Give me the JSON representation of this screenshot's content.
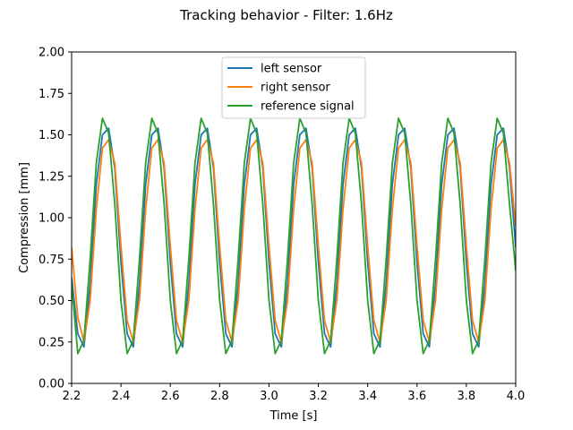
{
  "chart_data": {
    "type": "line",
    "title": "Tracking behavior - Filter: 1.6Hz",
    "xlabel": "Time [s]",
    "ylabel": "Compression [mm]",
    "xlim": [
      2.2,
      4.0
    ],
    "ylim": [
      0.0,
      2.0
    ],
    "xticks": [
      2.2,
      2.4,
      2.6,
      2.8,
      3.0,
      3.2,
      3.4,
      3.6,
      3.8,
      4.0
    ],
    "xtick_labels": [
      "2.2",
      "2.4",
      "2.6",
      "2.8",
      "3.0",
      "3.2",
      "3.4",
      "3.6",
      "3.8",
      "4.0"
    ],
    "yticks": [
      0.0,
      0.25,
      0.5,
      0.75,
      1.0,
      1.25,
      1.5,
      1.75,
      2.0
    ],
    "ytick_labels": [
      "0.00",
      "0.25",
      "0.50",
      "0.75",
      "1.00",
      "1.25",
      "1.50",
      "1.75",
      "2.00"
    ],
    "grid": false,
    "legend_position": "top-center",
    "series": [
      {
        "name": "left sensor",
        "color": "#1f77b4",
        "x": [
          2.2,
          2.225,
          2.25,
          2.275,
          2.3,
          2.325,
          2.35,
          2.375,
          2.4,
          2.425,
          2.45,
          2.475,
          2.5,
          2.525,
          2.55,
          2.575,
          2.6,
          2.625,
          2.65,
          2.675,
          2.7,
          2.725,
          2.75,
          2.775,
          2.8,
          2.825,
          2.85,
          2.875,
          2.9,
          2.925,
          2.95,
          2.975,
          3.0,
          3.025,
          3.05,
          3.075,
          3.1,
          3.125,
          3.15,
          3.175,
          3.2,
          3.225,
          3.25,
          3.275,
          3.3,
          3.325,
          3.35,
          3.375,
          3.4,
          3.425,
          3.45,
          3.475,
          3.5,
          3.525,
          3.55,
          3.575,
          3.6,
          3.625,
          3.65,
          3.675,
          3.7,
          3.725,
          3.75,
          3.775,
          3.8,
          3.825,
          3.85,
          3.875,
          3.9,
          3.925,
          3.95,
          3.975,
          4.0
        ],
        "y": [
          0.64,
          0.3,
          0.22,
          0.6,
          1.2,
          1.5,
          1.54,
          1.3,
          0.73,
          0.3,
          0.22,
          0.6,
          1.2,
          1.5,
          1.54,
          1.3,
          0.73,
          0.3,
          0.22,
          0.6,
          1.2,
          1.5,
          1.54,
          1.3,
          0.73,
          0.3,
          0.22,
          0.6,
          1.2,
          1.5,
          1.54,
          1.3,
          0.73,
          0.3,
          0.22,
          0.6,
          1.2,
          1.5,
          1.54,
          1.3,
          0.73,
          0.3,
          0.22,
          0.6,
          1.2,
          1.5,
          1.54,
          1.3,
          0.73,
          0.3,
          0.22,
          0.6,
          1.2,
          1.5,
          1.54,
          1.3,
          0.73,
          0.3,
          0.22,
          0.6,
          1.2,
          1.5,
          1.54,
          1.3,
          0.73,
          0.3,
          0.22,
          0.6,
          1.2,
          1.5,
          1.54,
          1.3,
          0.82
        ]
      },
      {
        "name": "right sensor",
        "color": "#ff7f0e",
        "x": [
          2.2,
          2.225,
          2.25,
          2.275,
          2.3,
          2.325,
          2.35,
          2.375,
          2.4,
          2.425,
          2.45,
          2.475,
          2.5,
          2.525,
          2.55,
          2.575,
          2.6,
          2.625,
          2.65,
          2.675,
          2.7,
          2.725,
          2.75,
          2.775,
          2.8,
          2.825,
          2.85,
          2.875,
          2.9,
          2.925,
          2.95,
          2.975,
          3.0,
          3.025,
          3.05,
          3.075,
          3.1,
          3.125,
          3.15,
          3.175,
          3.2,
          3.225,
          3.25,
          3.275,
          3.3,
          3.325,
          3.35,
          3.375,
          3.4,
          3.425,
          3.45,
          3.475,
          3.5,
          3.525,
          3.55,
          3.575,
          3.6,
          3.625,
          3.65,
          3.675,
          3.7,
          3.725,
          3.75,
          3.775,
          3.8,
          3.825,
          3.85,
          3.875,
          3.9,
          3.925,
          3.95,
          3.975,
          4.0
        ],
        "y": [
          0.82,
          0.4,
          0.25,
          0.5,
          1.05,
          1.42,
          1.47,
          1.33,
          0.83,
          0.38,
          0.25,
          0.5,
          1.05,
          1.42,
          1.47,
          1.33,
          0.83,
          0.38,
          0.25,
          0.5,
          1.05,
          1.42,
          1.47,
          1.33,
          0.83,
          0.38,
          0.25,
          0.5,
          1.05,
          1.42,
          1.47,
          1.33,
          0.83,
          0.38,
          0.25,
          0.5,
          1.05,
          1.42,
          1.47,
          1.33,
          0.83,
          0.38,
          0.25,
          0.5,
          1.05,
          1.42,
          1.47,
          1.33,
          0.83,
          0.38,
          0.25,
          0.5,
          1.05,
          1.42,
          1.47,
          1.33,
          0.83,
          0.38,
          0.25,
          0.5,
          1.05,
          1.42,
          1.47,
          1.33,
          0.83,
          0.38,
          0.25,
          0.5,
          1.05,
          1.42,
          1.47,
          1.33,
          0.95
        ]
      },
      {
        "name": "reference signal",
        "color": "#2ca02c",
        "x": [
          2.2,
          2.225,
          2.25,
          2.275,
          2.3,
          2.325,
          2.35,
          2.375,
          2.4,
          2.425,
          2.45,
          2.475,
          2.5,
          2.525,
          2.55,
          2.575,
          2.6,
          2.625,
          2.65,
          2.675,
          2.7,
          2.725,
          2.75,
          2.775,
          2.8,
          2.825,
          2.85,
          2.875,
          2.9,
          2.925,
          2.95,
          2.975,
          3.0,
          3.025,
          3.05,
          3.075,
          3.1,
          3.125,
          3.15,
          3.175,
          3.2,
          3.225,
          3.25,
          3.275,
          3.3,
          3.325,
          3.35,
          3.375,
          3.4,
          3.425,
          3.45,
          3.475,
          3.5,
          3.525,
          3.55,
          3.575,
          3.6,
          3.625,
          3.65,
          3.675,
          3.7,
          3.725,
          3.75,
          3.775,
          3.8,
          3.825,
          3.85,
          3.875,
          3.9,
          3.925,
          3.95,
          3.975,
          4.0
        ],
        "y": [
          0.6,
          0.18,
          0.26,
          0.75,
          1.33,
          1.6,
          1.51,
          1.08,
          0.5,
          0.18,
          0.26,
          0.75,
          1.33,
          1.6,
          1.51,
          1.08,
          0.5,
          0.18,
          0.26,
          0.75,
          1.33,
          1.6,
          1.51,
          1.08,
          0.5,
          0.18,
          0.26,
          0.75,
          1.33,
          1.6,
          1.51,
          1.08,
          0.5,
          0.18,
          0.26,
          0.75,
          1.33,
          1.6,
          1.51,
          1.08,
          0.5,
          0.18,
          0.26,
          0.75,
          1.33,
          1.6,
          1.51,
          1.08,
          0.5,
          0.18,
          0.26,
          0.75,
          1.33,
          1.6,
          1.51,
          1.08,
          0.5,
          0.18,
          0.26,
          0.75,
          1.33,
          1.6,
          1.51,
          1.08,
          0.5,
          0.18,
          0.26,
          0.75,
          1.33,
          1.6,
          1.51,
          1.08,
          0.68
        ]
      }
    ]
  }
}
